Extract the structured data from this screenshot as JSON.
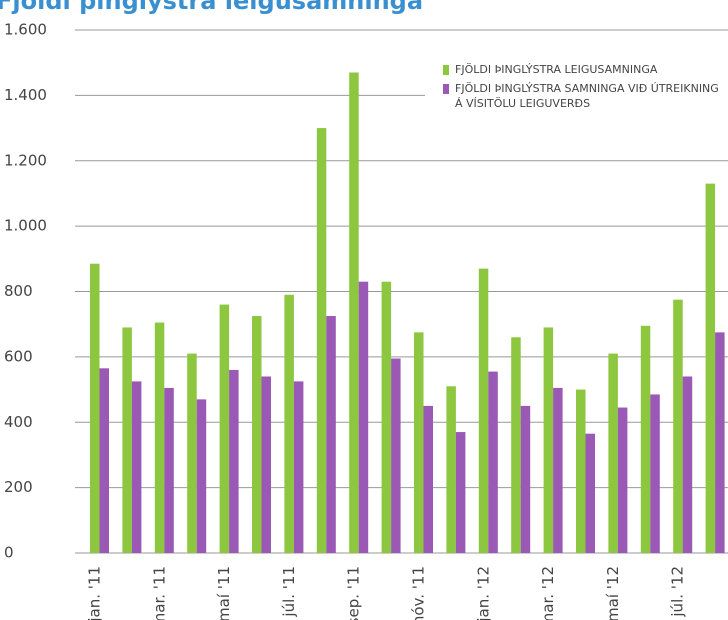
{
  "chart_data": {
    "type": "bar",
    "title": "Fjöldi þinglýstra leigusamninga",
    "categories": [
      "jan. '11",
      null,
      "mar. '11",
      null,
      "maí '11",
      null,
      "júl. '11",
      null,
      "sep. '11",
      null,
      "nóv. '11",
      null,
      "jan. '12",
      null,
      "mar. '12",
      null,
      "maí '12",
      null,
      "júl. '12",
      null
    ],
    "series": [
      {
        "name": "FJÖLDI ÞINGLÝSTRA LEIGUSAMNINGA",
        "color": "#8dc63f",
        "values": [
          885,
          690,
          705,
          610,
          760,
          725,
          790,
          1300,
          1470,
          830,
          675,
          510,
          870,
          660,
          690,
          500,
          610,
          695,
          775,
          1130
        ]
      },
      {
        "name": "FJÖLDI ÞINGLÝSTRA SAMNINGA VIÐ ÚTREIKNING Á VÍSITÖLU LEIGUVERÐS",
        "color": "#9b59b6",
        "values": [
          565,
          525,
          505,
          470,
          560,
          540,
          525,
          725,
          830,
          595,
          450,
          370,
          555,
          450,
          505,
          365,
          445,
          485,
          540,
          675
        ]
      }
    ],
    "ylim": [
      0,
      1600
    ],
    "yticks": [
      0,
      200,
      400,
      600,
      800,
      {
        "value": 1000,
        "label": "1.000"
      },
      {
        "value": 1200,
        "label": "1.200"
      },
      {
        "value": 1400,
        "label": "1.400"
      },
      {
        "value": 1600,
        "label": "1.600"
      }
    ],
    "grid": true,
    "legend": "top-right"
  }
}
